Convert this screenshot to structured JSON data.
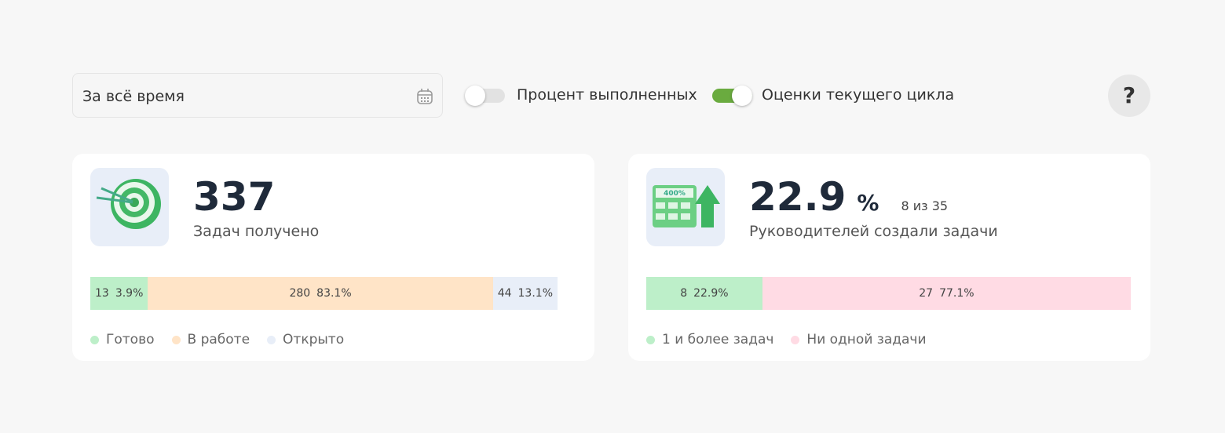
{
  "filter": {
    "period": "За всё время"
  },
  "toggles": [
    {
      "label": "Процент выполненных",
      "on": false
    },
    {
      "label": "Оценки текущего цикла",
      "on": true
    }
  ],
  "help": "?",
  "cards": [
    {
      "value": 337,
      "caption": "Задач получено",
      "bar": {
        "counts": [
          13,
          280,
          44
        ],
        "values": [
          3.9,
          83.1,
          13.1
        ],
        "value_labels": [
          "3.9%",
          "83.1%",
          "13.1%"
        ],
        "colors": [
          "#bdefc9",
          "#ffe4c7",
          "#e8eef8"
        ],
        "legend": [
          "Готово",
          "В работе",
          "Открыто"
        ]
      }
    },
    {
      "value": 22.9,
      "unit": "%",
      "note": "8 из 35",
      "caption": "Руководителей создали задачи",
      "bar": {
        "counts": [
          8,
          27
        ],
        "values": [
          22.9,
          77.1
        ],
        "value_labels": [
          "22.9%",
          "77.1%"
        ],
        "colors": [
          "#bdefc9",
          "#ffdbe4"
        ],
        "legend": [
          "1 и более задач",
          "Ни одной задачи"
        ]
      }
    }
  ]
}
